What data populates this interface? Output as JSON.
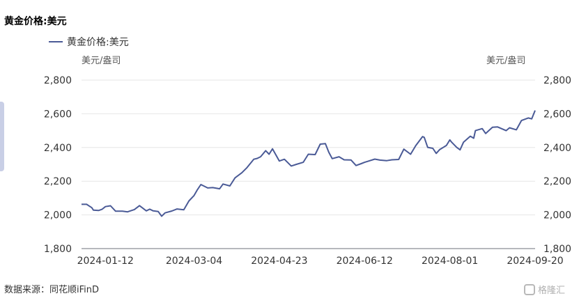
{
  "title": "黄金价格:美元",
  "legend": {
    "label": "黄金价格:美元",
    "color": "#4a5a96"
  },
  "unit_left": "美元/盎司",
  "unit_right": "美元/盎司",
  "source": "数据来源：同花顺iFinD",
  "watermark": "格隆汇",
  "chart_data": {
    "type": "line",
    "title": "黄金价格:美元",
    "ylabel": "美元/盎司",
    "ylabel_right": "美元/盎司",
    "ylim": [
      1800,
      2800
    ],
    "yticks": [
      1800,
      2000,
      2200,
      2400,
      2600,
      2800
    ],
    "ytick_labels": [
      "1,800",
      "2,000",
      "2,200",
      "2,400",
      "2,600",
      "2,800"
    ],
    "xlim": [
      "2023-12-29",
      "2024-09-20"
    ],
    "xticks": [
      "2024-01-12",
      "2024-03-04",
      "2024-04-23",
      "2024-06-12",
      "2024-08-01",
      "2024-09-20"
    ],
    "grid": true,
    "legend_position": "top-left",
    "series": [
      {
        "name": "黄金价格:美元",
        "color": "#4a5a96",
        "x": [
          "2023-12-29",
          "2024-01-01",
          "2024-01-04",
          "2024-01-05",
          "2024-01-08",
          "2024-01-10",
          "2024-01-12",
          "2024-01-15",
          "2024-01-18",
          "2024-01-22",
          "2024-01-25",
          "2024-01-29",
          "2024-02-01",
          "2024-02-05",
          "2024-02-07",
          "2024-02-09",
          "2024-02-12",
          "2024-02-14",
          "2024-02-16",
          "2024-02-20",
          "2024-02-23",
          "2024-02-27",
          "2024-03-01",
          "2024-03-04",
          "2024-03-06",
          "2024-03-08",
          "2024-03-12",
          "2024-03-15",
          "2024-03-19",
          "2024-03-21",
          "2024-03-25",
          "2024-03-28",
          "2024-04-01",
          "2024-04-04",
          "2024-04-08",
          "2024-04-10",
          "2024-04-12",
          "2024-04-15",
          "2024-04-17",
          "2024-04-19",
          "2024-04-23",
          "2024-04-26",
          "2024-04-30",
          "2024-05-03",
          "2024-05-07",
          "2024-05-10",
          "2024-05-14",
          "2024-05-17",
          "2024-05-20",
          "2024-05-22",
          "2024-05-24",
          "2024-05-28",
          "2024-05-31",
          "2024-06-04",
          "2024-06-07",
          "2024-06-10",
          "2024-06-12",
          "2024-06-14",
          "2024-06-18",
          "2024-06-21",
          "2024-06-25",
          "2024-06-28",
          "2024-07-02",
          "2024-07-05",
          "2024-07-09",
          "2024-07-12",
          "2024-07-16",
          "2024-07-17",
          "2024-07-19",
          "2024-07-22",
          "2024-07-24",
          "2024-07-26",
          "2024-07-30",
          "2024-08-01",
          "2024-08-02",
          "2024-08-05",
          "2024-08-07",
          "2024-08-09",
          "2024-08-13",
          "2024-08-15",
          "2024-08-16",
          "2024-08-20",
          "2024-08-22",
          "2024-08-26",
          "2024-08-29",
          "2024-09-03",
          "2024-09-05",
          "2024-09-09",
          "2024-09-12",
          "2024-09-16",
          "2024-09-18",
          "2024-09-20"
        ],
        "values": [
          2063,
          2063,
          2043,
          2028,
          2026,
          2033,
          2049,
          2054,
          2022,
          2022,
          2018,
          2032,
          2055,
          2024,
          2034,
          2024,
          2020,
          1992,
          2012,
          2023,
          2035,
          2030,
          2083,
          2115,
          2150,
          2180,
          2160,
          2162,
          2155,
          2183,
          2172,
          2220,
          2250,
          2280,
          2330,
          2335,
          2345,
          2381,
          2360,
          2392,
          2320,
          2330,
          2290,
          2300,
          2312,
          2360,
          2358,
          2420,
          2423,
          2372,
          2334,
          2345,
          2327,
          2326,
          2293,
          2304,
          2312,
          2318,
          2331,
          2325,
          2322,
          2327,
          2329,
          2390,
          2360,
          2411,
          2465,
          2460,
          2401,
          2395,
          2365,
          2387,
          2412,
          2445,
          2432,
          2401,
          2386,
          2431,
          2467,
          2455,
          2500,
          2512,
          2483,
          2520,
          2522,
          2500,
          2517,
          2505,
          2560,
          2575,
          2570,
          2620
        ]
      }
    ]
  }
}
